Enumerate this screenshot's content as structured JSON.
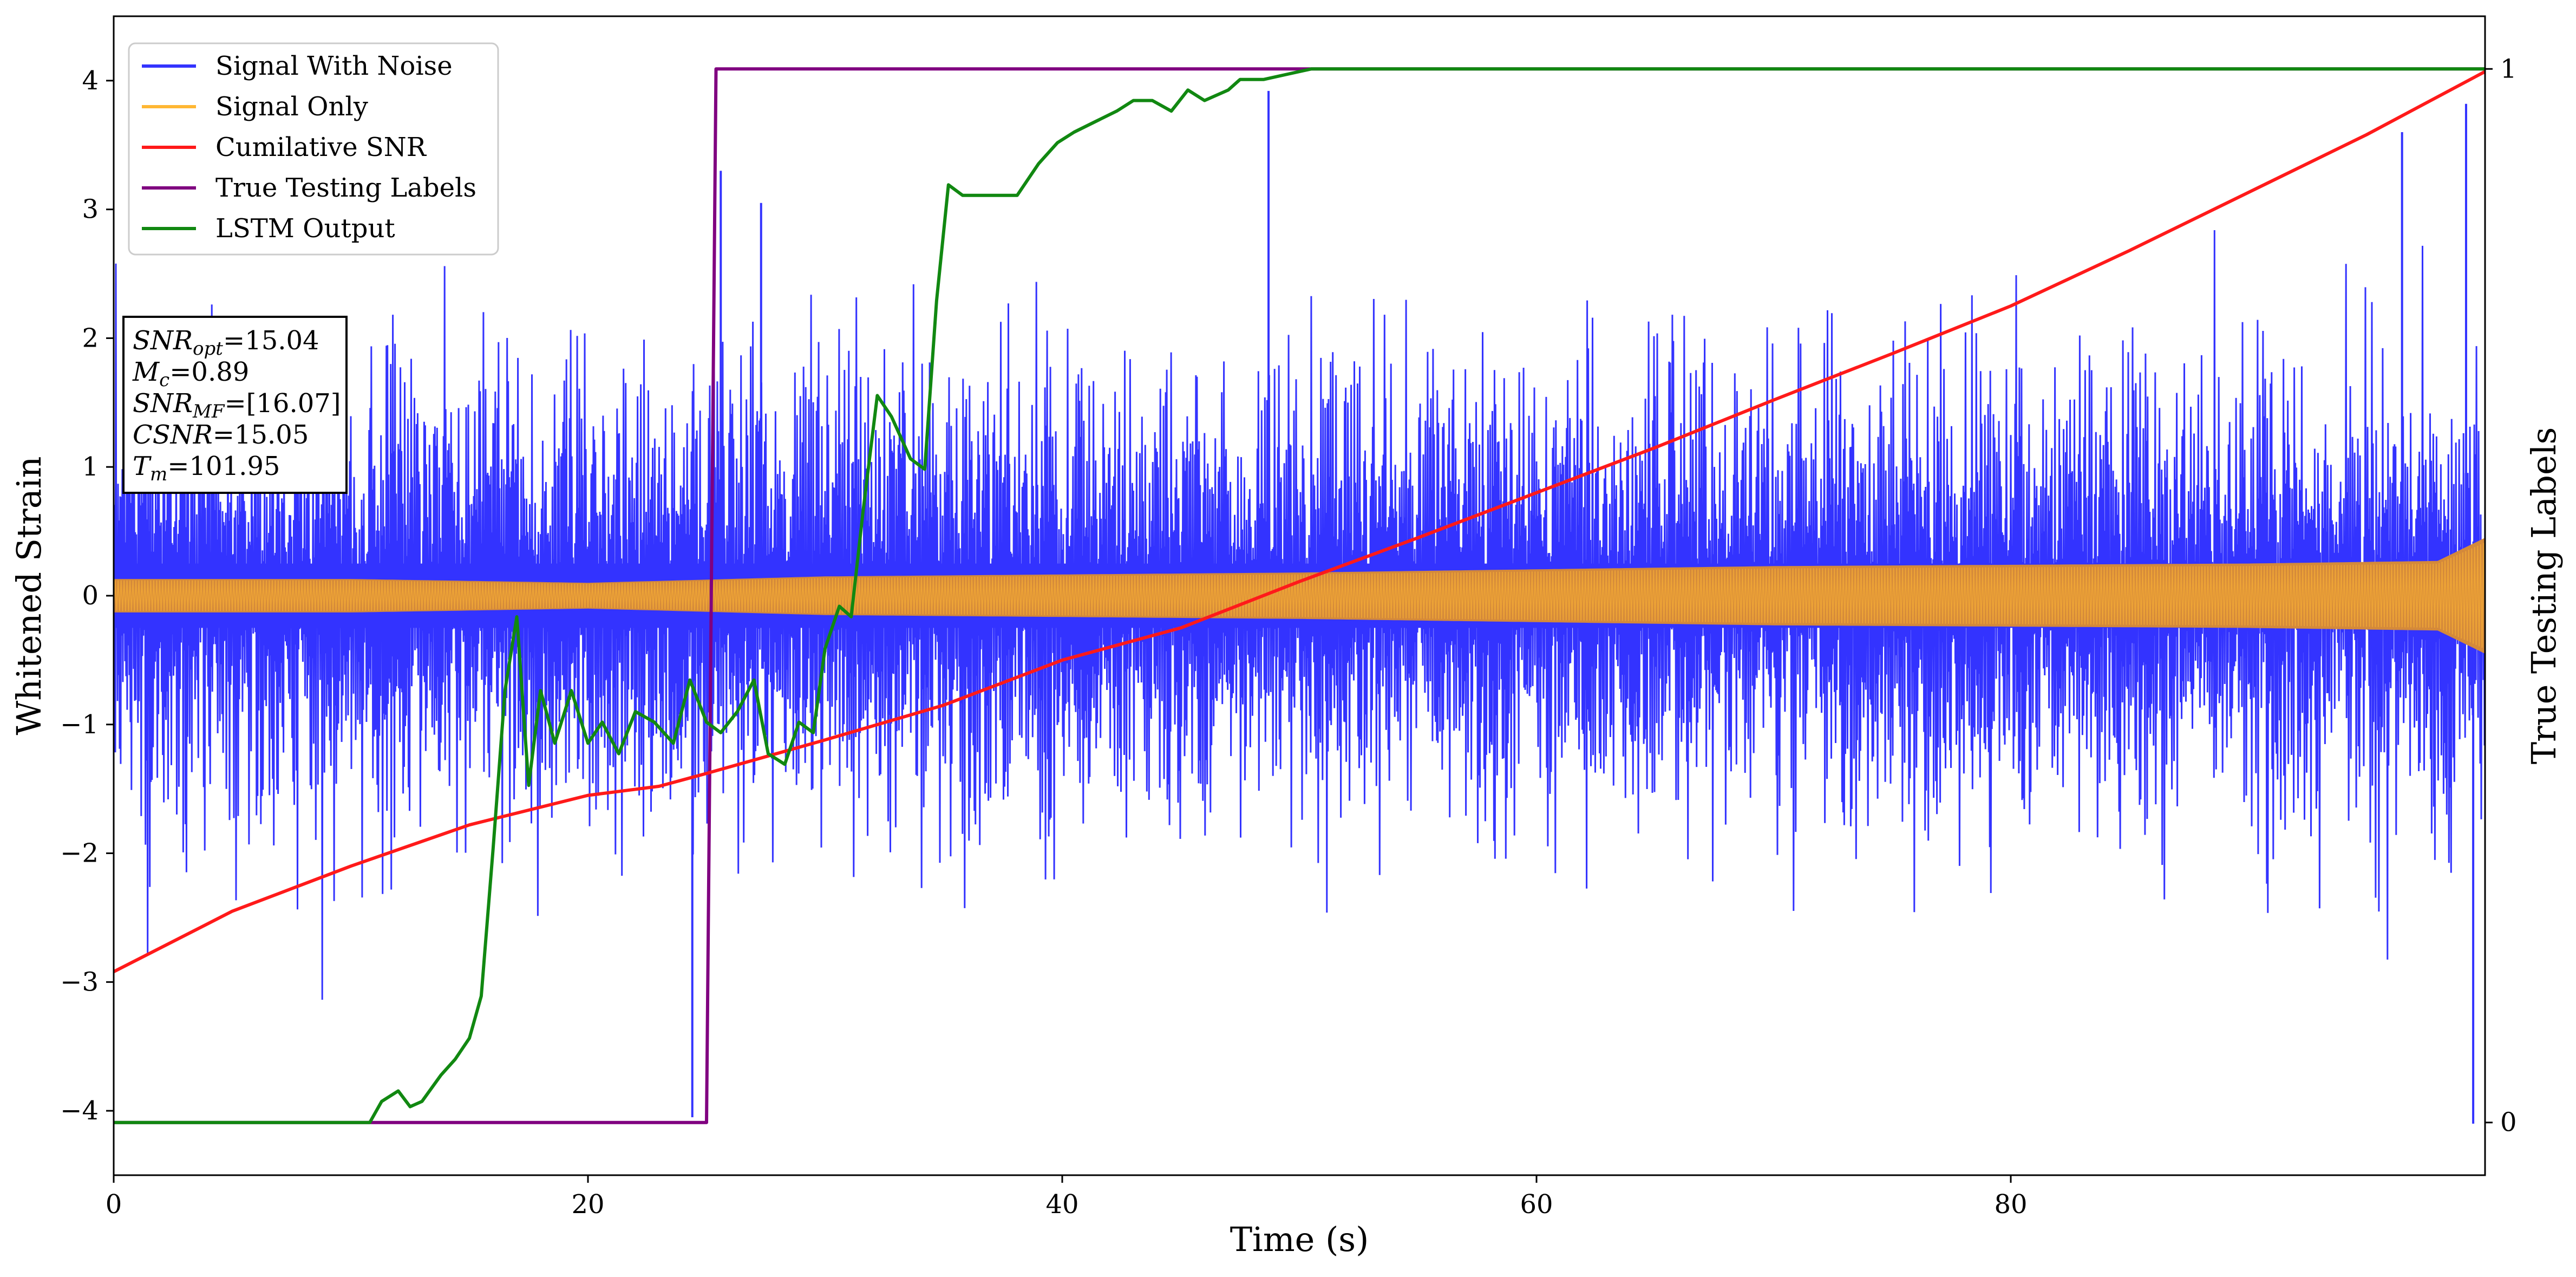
{
  "chart_data": {
    "type": "line",
    "xlabel": "Time (s)",
    "ylabel": "Whitened Strain",
    "y2label": "True Testing Labels",
    "xlim": [
      0,
      100
    ],
    "ylim": [
      -4.5,
      4.5
    ],
    "y2lim": [
      -0.05,
      1.05
    ],
    "x_ticks": [
      0,
      20,
      40,
      60,
      80
    ],
    "x_tick_labels": [
      "0",
      "20",
      "40",
      "60",
      "80"
    ],
    "y_ticks": [
      -4,
      -3,
      -2,
      -1,
      0,
      1,
      2,
      3,
      4
    ],
    "y_tick_labels": [
      "−4",
      "−3",
      "−2",
      "−1",
      "0",
      "1",
      "2",
      "3",
      "4"
    ],
    "y2_ticks": [
      0,
      1
    ],
    "y2_tick_labels": [
      "0",
      "1"
    ],
    "grid": false,
    "legend_position": "top-left",
    "colors": {
      "signal_with_noise": "#3333ff",
      "signal_only": "#ffb733",
      "signal_only_overlap": "#d4893a",
      "cumulative_snr": "#ff1a1a",
      "true_labels": "#800080",
      "lstm_output": "#118811"
    },
    "legend": [
      {
        "name": "Signal With Noise",
        "color": "#3333ff"
      },
      {
        "name": "Signal Only",
        "color": "#ffb733"
      },
      {
        "name": "Cumilative SNR",
        "color": "#ff1a1a"
      },
      {
        "name": "True Testing Labels",
        "color": "#800080"
      },
      {
        "name": "LSTM Output",
        "color": "#118811"
      }
    ],
    "annotation": [
      {
        "sym": "SNR",
        "sub": "opt",
        "val": "=15.04"
      },
      {
        "sym": "M",
        "sub": "c",
        "val": "=0.89"
      },
      {
        "sym": "SNR",
        "sub": "MF",
        "val": "=[16.07]"
      },
      {
        "sym": "CSNR",
        "sub": "",
        "val": "=15.05"
      },
      {
        "sym": "T",
        "sub": "m",
        "val": "=101.95"
      }
    ],
    "series": [
      {
        "name": "Signal With Noise",
        "axis": "left",
        "envelope": {
          "typical_amplitude": 1.6,
          "peak_amplitude": 4.0
        },
        "spikes": [
          {
            "x": 24.4,
            "y": -4.05
          },
          {
            "x": 25.6,
            "y": 3.3
          },
          {
            "x": 27.3,
            "y": 3.05
          },
          {
            "x": 48.7,
            "y": 3.92
          },
          {
            "x": 99.2,
            "y": 3.82
          },
          {
            "x": 99.5,
            "y": -4.1
          },
          {
            "x": 96.5,
            "y": 3.6
          }
        ]
      },
      {
        "name": "Signal Only",
        "axis": "left",
        "amplitude_profile": [
          [
            0,
            0.13
          ],
          [
            10,
            0.13
          ],
          [
            20,
            0.1
          ],
          [
            30,
            0.15
          ],
          [
            50,
            0.18
          ],
          [
            70,
            0.23
          ],
          [
            90,
            0.25
          ],
          [
            98,
            0.27
          ],
          [
            100,
            0.45
          ]
        ]
      },
      {
        "name": "Cumilative SNR",
        "axis": "left",
        "x": [
          0,
          5,
          10,
          15,
          20,
          23,
          25,
          30,
          35,
          40,
          45,
          50,
          55,
          60,
          65,
          70,
          75,
          80,
          85,
          90,
          95,
          100
        ],
        "y": [
          -2.92,
          -2.45,
          -2.1,
          -1.78,
          -1.55,
          -1.48,
          -1.38,
          -1.12,
          -0.85,
          -0.5,
          -0.25,
          0.11,
          0.45,
          0.8,
          1.15,
          1.52,
          1.88,
          2.25,
          2.68,
          3.13,
          3.58,
          4.07
        ]
      },
      {
        "name": "True Testing Labels",
        "axis": "right",
        "x": [
          0,
          25.0,
          25.4,
          100
        ],
        "y": [
          0,
          0,
          1,
          1
        ]
      },
      {
        "name": "LSTM Output",
        "axis": "right",
        "x": [
          0,
          10.8,
          11.3,
          12.0,
          12.5,
          13.0,
          13.8,
          14.4,
          15.0,
          15.5,
          16.0,
          16.5,
          17.0,
          17.5,
          18.0,
          18.6,
          19.3,
          20.0,
          20.6,
          21.3,
          22.0,
          22.8,
          23.6,
          24.3,
          25.0,
          25.6,
          26.3,
          27.0,
          27.6,
          28.3,
          28.9,
          29.5,
          30.0,
          30.6,
          31.1,
          31.6,
          32.2,
          32.8,
          33.6,
          34.2,
          34.7,
          35.2,
          35.8,
          36.4,
          37.3,
          38.1,
          39.0,
          39.8,
          40.5,
          41.4,
          42.3,
          43.0,
          43.8,
          44.6,
          45.3,
          46.0,
          47.0,
          47.5,
          48.5,
          49.5,
          50.5,
          52.0,
          55.0,
          60.0,
          65.0,
          100
        ],
        "y": [
          0,
          0,
          0.02,
          0.03,
          0.015,
          0.02,
          0.045,
          0.06,
          0.08,
          0.12,
          0.26,
          0.41,
          0.48,
          0.32,
          0.41,
          0.36,
          0.41,
          0.36,
          0.38,
          0.35,
          0.39,
          0.38,
          0.36,
          0.42,
          0.38,
          0.37,
          0.39,
          0.42,
          0.35,
          0.34,
          0.38,
          0.37,
          0.45,
          0.49,
          0.48,
          0.58,
          0.69,
          0.67,
          0.63,
          0.62,
          0.78,
          0.89,
          0.88,
          0.88,
          0.88,
          0.88,
          0.91,
          0.93,
          0.94,
          0.95,
          0.96,
          0.97,
          0.97,
          0.96,
          0.98,
          0.97,
          0.98,
          0.99,
          0.99,
          0.995,
          1.0,
          1.0,
          1.0,
          1.0,
          1.0,
          1.0
        ]
      }
    ]
  }
}
